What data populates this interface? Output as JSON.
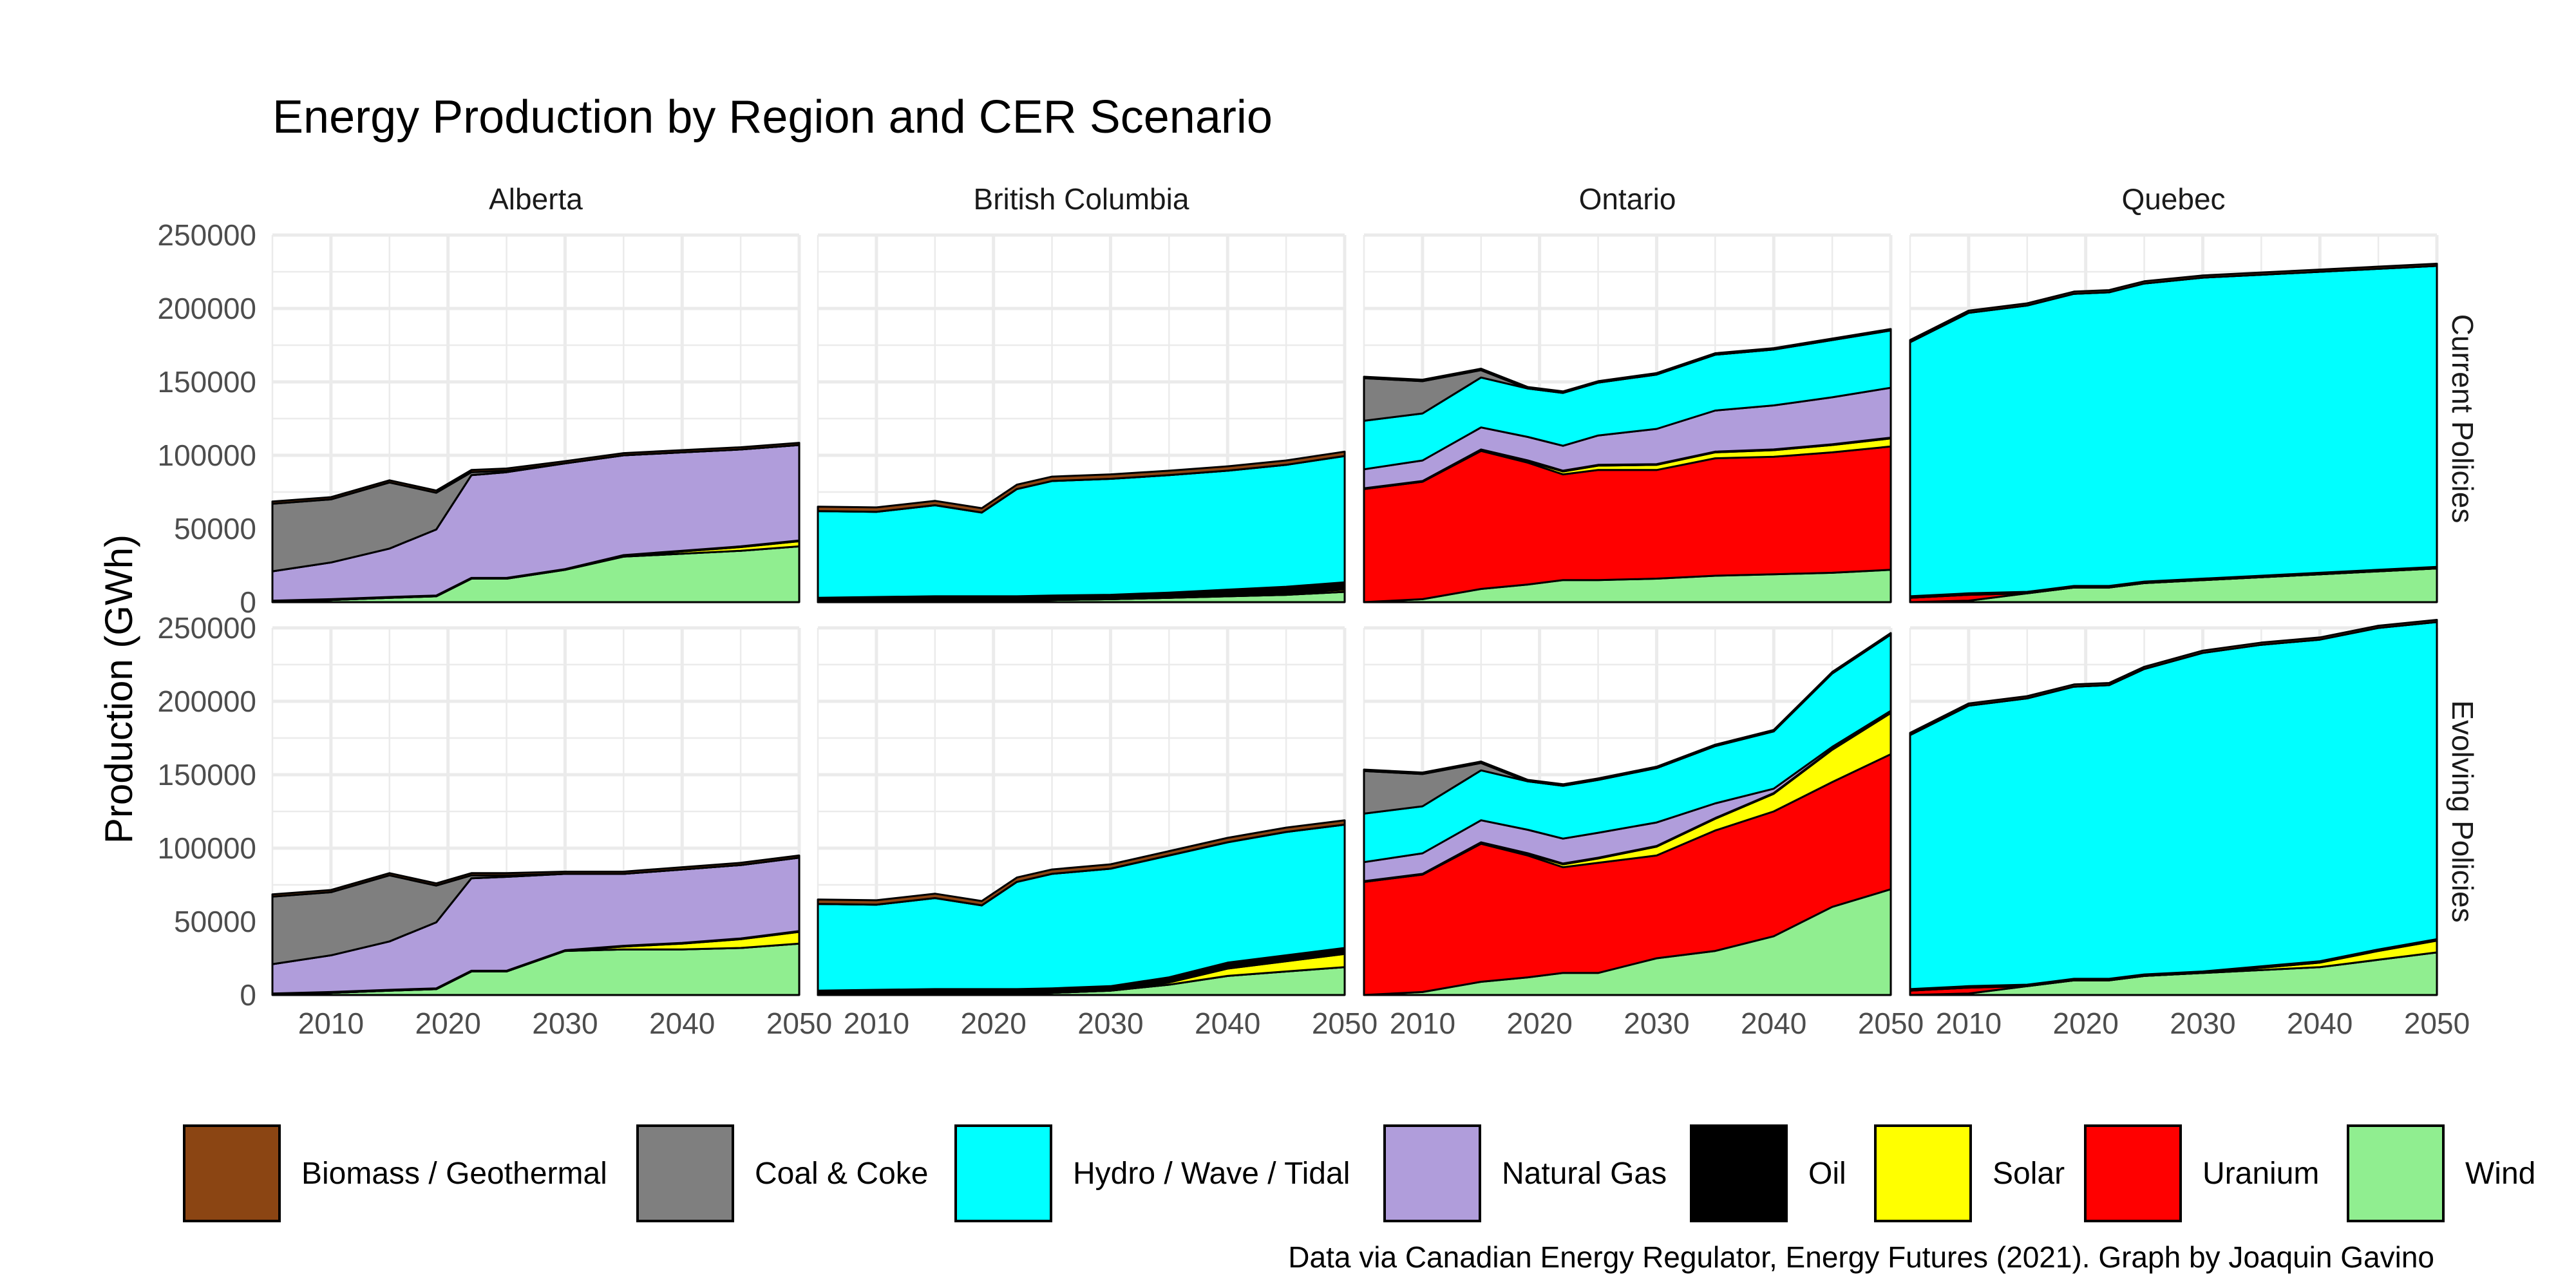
{
  "chart_data": {
    "type": "area",
    "stacked": true,
    "title": "Energy Production by Region and CER Scenario",
    "ylabel": "Production (GWh)",
    "xlabel": "",
    "caption": "Data via Canadian Energy Regulator, Energy Futures (2021). Graph by Joaquin Gavino",
    "xlim": [
      2005,
      2050
    ],
    "ylim": [
      0,
      250000
    ],
    "x_ticks": [
      "2010",
      "2020",
      "2030",
      "2040",
      "2050"
    ],
    "y_ticks": [
      "0",
      "50000",
      "100000",
      "150000",
      "200000",
      "250000"
    ],
    "grid": true,
    "legend_position": "bottom",
    "legend": [
      {
        "name": "Biomass / Geothermal",
        "color": "#8B4513"
      },
      {
        "name": "Coal & Coke",
        "color": "#7F7F7F"
      },
      {
        "name": "Hydro / Wave / Tidal",
        "color": "#00FFFF"
      },
      {
        "name": "Natural Gas",
        "color": "#B09DDB"
      },
      {
        "name": "Oil",
        "color": "#000000"
      },
      {
        "name": "Solar",
        "color": "#FFFF00"
      },
      {
        "name": "Uranium",
        "color": "#FF0000"
      },
      {
        "name": "Wind",
        "color": "#90EE90"
      }
    ],
    "stack_order": [
      "Wind",
      "Uranium",
      "Solar",
      "Oil",
      "Natural Gas",
      "Hydro / Wave / Tidal",
      "Coal & Coke",
      "Biomass / Geothermal"
    ],
    "columns": [
      "Alberta",
      "British Columbia",
      "Ontario",
      "Quebec"
    ],
    "rows": [
      "Current Policies",
      "Evolving Policies"
    ],
    "years": [
      2005,
      2010,
      2015,
      2019,
      2022,
      2025,
      2030,
      2035,
      2040,
      2045,
      2050
    ],
    "panels": [
      {
        "region": "Alberta",
        "scenario": "Current Policies",
        "series": {
          "Wind": [
            500,
            1500,
            3000,
            4000,
            16000,
            16000,
            22000,
            31000,
            33000,
            35000,
            38000
          ],
          "Uranium": [
            0,
            0,
            0,
            0,
            0,
            0,
            0,
            0,
            0,
            0,
            0
          ],
          "Solar": [
            0,
            0,
            0,
            0,
            0,
            0,
            0,
            500,
            1500,
            2500,
            3500
          ],
          "Oil": [
            500,
            500,
            500,
            500,
            500,
            500,
            500,
            500,
            500,
            500,
            500
          ],
          "Natural Gas": [
            20000,
            25000,
            33000,
            45000,
            70000,
            72000,
            72000,
            68000,
            67000,
            66000,
            65000
          ],
          "Hydro / Wave / Tidal": [
            0,
            0,
            0,
            0,
            0,
            0,
            0,
            0,
            0,
            0,
            0
          ],
          "Coal & Coke": [
            46000,
            43000,
            45000,
            25000,
            2000,
            1000,
            0,
            0,
            0,
            0,
            0
          ],
          "Biomass / Geothermal": [
            1500,
            1500,
            1500,
            1500,
            1500,
            1500,
            1500,
            1500,
            1500,
            1500,
            1500
          ]
        }
      },
      {
        "region": "British Columbia",
        "scenario": "Current Policies",
        "series": {
          "Wind": [
            0,
            500,
            1000,
            1000,
            1000,
            1500,
            2000,
            3000,
            4000,
            5000,
            7000
          ],
          "Uranium": [
            0,
            0,
            0,
            0,
            0,
            0,
            0,
            0,
            0,
            0,
            0
          ],
          "Solar": [
            0,
            0,
            0,
            0,
            0,
            0,
            0,
            0,
            500,
            1000,
            1500
          ],
          "Oil": [
            2000,
            2000,
            2000,
            2000,
            2000,
            2000,
            2000,
            2500,
            3000,
            3500,
            4000
          ],
          "Natural Gas": [
            1000,
            1000,
            1000,
            1000,
            1000,
            1000,
            1000,
            1000,
            1000,
            1000,
            1000
          ],
          "Hydro / Wave / Tidal": [
            59000,
            58000,
            62000,
            57000,
            73000,
            78000,
            79000,
            80000,
            81000,
            83000,
            86000
          ],
          "Coal & Coke": [
            0,
            0,
            0,
            0,
            0,
            0,
            0,
            0,
            0,
            0,
            0
          ],
          "Biomass / Geothermal": [
            3000,
            3000,
            3000,
            3000,
            3000,
            3000,
            3000,
            3000,
            3000,
            3000,
            3000
          ]
        }
      },
      {
        "region": "Ontario",
        "scenario": "Current Policies",
        "series": {
          "Wind": [
            0,
            2000,
            9000,
            12000,
            15000,
            15000,
            16000,
            18000,
            19000,
            20000,
            22000
          ],
          "Uranium": [
            77000,
            80000,
            94000,
            83000,
            72000,
            75000,
            74000,
            80000,
            80000,
            82000,
            84000
          ],
          "Solar": [
            0,
            0,
            500,
            1000,
            2000,
            3000,
            3500,
            4000,
            4500,
            5000,
            5500
          ],
          "Oil": [
            500,
            500,
            500,
            500,
            500,
            500,
            500,
            500,
            500,
            500,
            500
          ],
          "Natural Gas": [
            13000,
            14000,
            15000,
            16000,
            17000,
            20000,
            24000,
            28000,
            30000,
            32000,
            34000
          ],
          "Hydro / Wave / Tidal": [
            33000,
            32000,
            34000,
            33000,
            36000,
            36000,
            37000,
            38000,
            38000,
            39000,
            39000
          ],
          "Coal & Coke": [
            29000,
            22000,
            5000,
            0,
            0,
            0,
            0,
            0,
            0,
            0,
            0
          ],
          "Biomass / Geothermal": [
            1000,
            1000,
            1000,
            1000,
            1000,
            1000,
            1000,
            1000,
            1000,
            1000,
            1000
          ]
        }
      },
      {
        "region": "Quebec",
        "scenario": "Current Policies",
        "series": {
          "Wind": [
            0,
            1000,
            6000,
            10000,
            10000,
            13000,
            15000,
            17000,
            19000,
            21000,
            23000
          ],
          "Uranium": [
            3000,
            4000,
            0,
            0,
            0,
            0,
            0,
            0,
            0,
            0,
            0
          ],
          "Solar": [
            0,
            0,
            0,
            0,
            0,
            0,
            0,
            0,
            0,
            0,
            0
          ],
          "Oil": [
            1000,
            1000,
            1000,
            1000,
            1000,
            1000,
            1000,
            1000,
            1000,
            1000,
            1000
          ],
          "Natural Gas": [
            0,
            0,
            0,
            0,
            0,
            0,
            0,
            0,
            0,
            0,
            0
          ],
          "Hydro / Wave / Tidal": [
            173000,
            191000,
            195000,
            199000,
            200000,
            203000,
            205000,
            205000,
            205000,
            205000,
            205000
          ],
          "Coal & Coke": [
            0,
            0,
            0,
            0,
            0,
            0,
            0,
            0,
            0,
            0,
            0
          ],
          "Biomass / Geothermal": [
            1500,
            1500,
            1500,
            1500,
            1500,
            1500,
            1500,
            1500,
            1500,
            1500,
            1500
          ]
        }
      },
      {
        "region": "Alberta",
        "scenario": "Evolving Policies",
        "series": {
          "Wind": [
            500,
            1500,
            3000,
            4000,
            16000,
            16000,
            30000,
            31000,
            31000,
            32000,
            35000
          ],
          "Uranium": [
            0,
            0,
            0,
            0,
            0,
            0,
            0,
            0,
            0,
            0,
            0
          ],
          "Solar": [
            0,
            0,
            0,
            0,
            0,
            0,
            0,
            2000,
            4000,
            6000,
            8000
          ],
          "Oil": [
            500,
            500,
            500,
            500,
            500,
            500,
            500,
            500,
            500,
            500,
            500
          ],
          "Natural Gas": [
            20000,
            25000,
            33000,
            45000,
            63000,
            64000,
            52000,
            49000,
            50000,
            50000,
            50000
          ],
          "Hydro / Wave / Tidal": [
            0,
            0,
            0,
            0,
            0,
            0,
            0,
            0,
            0,
            0,
            0
          ],
          "Coal & Coke": [
            46000,
            43000,
            45000,
            25000,
            2000,
            1000,
            0,
            0,
            0,
            0,
            0
          ],
          "Biomass / Geothermal": [
            1500,
            1500,
            1500,
            1500,
            1500,
            1500,
            1500,
            1500,
            1500,
            1500,
            1500
          ]
        }
      },
      {
        "region": "British Columbia",
        "scenario": "Evolving Policies",
        "series": {
          "Wind": [
            0,
            500,
            1000,
            1000,
            1000,
            1500,
            3000,
            7000,
            13000,
            16000,
            19000
          ],
          "Uranium": [
            0,
            0,
            0,
            0,
            0,
            0,
            0,
            0,
            0,
            0,
            0
          ],
          "Solar": [
            0,
            0,
            0,
            0,
            0,
            0,
            0,
            1500,
            5000,
            7000,
            9000
          ],
          "Oil": [
            2000,
            2000,
            2000,
            2000,
            2000,
            2000,
            2000,
            2500,
            3000,
            3000,
            3000
          ],
          "Natural Gas": [
            1000,
            1000,
            1000,
            1000,
            1000,
            1000,
            1000,
            1000,
            1000,
            1000,
            1000
          ],
          "Hydro / Wave / Tidal": [
            59000,
            58000,
            62000,
            57000,
            73000,
            78000,
            80000,
            83000,
            82000,
            84000,
            84000
          ],
          "Coal & Coke": [
            0,
            0,
            0,
            0,
            0,
            0,
            0,
            0,
            0,
            0,
            0
          ],
          "Biomass / Geothermal": [
            3000,
            3000,
            3000,
            3000,
            3000,
            3000,
            3000,
            3000,
            3000,
            3000,
            3000
          ]
        }
      },
      {
        "region": "Ontario",
        "scenario": "Evolving Policies",
        "series": {
          "Wind": [
            0,
            2000,
            9000,
            12000,
            15000,
            15000,
            25000,
            30000,
            40000,
            60000,
            72000
          ],
          "Uranium": [
            77000,
            80000,
            94000,
            83000,
            72000,
            75000,
            70000,
            82000,
            85000,
            85000,
            92000
          ],
          "Solar": [
            0,
            0,
            500,
            1000,
            2000,
            3000,
            6000,
            8000,
            12000,
            22000,
            28000
          ],
          "Oil": [
            500,
            500,
            500,
            500,
            500,
            500,
            500,
            500,
            500,
            500,
            500
          ],
          "Natural Gas": [
            13000,
            14000,
            15000,
            16000,
            17000,
            17000,
            16000,
            10000,
            3000,
            1500,
            1000
          ],
          "Hydro / Wave / Tidal": [
            33000,
            32000,
            34000,
            33000,
            36000,
            36000,
            37000,
            39000,
            39000,
            50000,
            52000
          ],
          "Coal & Coke": [
            29000,
            22000,
            5000,
            0,
            0,
            0,
            0,
            0,
            0,
            0,
            0
          ],
          "Biomass / Geothermal": [
            1000,
            1000,
            1000,
            1000,
            1000,
            1000,
            1000,
            1000,
            1000,
            1000,
            1000
          ]
        }
      },
      {
        "region": "Quebec",
        "scenario": "Evolving Policies",
        "series": {
          "Wind": [
            0,
            1000,
            6000,
            10000,
            10000,
            13000,
            15000,
            17000,
            19000,
            24000,
            29000
          ],
          "Uranium": [
            3000,
            4000,
            0,
            0,
            0,
            0,
            0,
            0,
            0,
            0,
            0
          ],
          "Solar": [
            0,
            0,
            0,
            0,
            0,
            0,
            0,
            1500,
            3000,
            6000,
            8000
          ],
          "Oil": [
            1000,
            1000,
            1000,
            1000,
            1000,
            1000,
            1000,
            1000,
            1000,
            1000,
            1000
          ],
          "Natural Gas": [
            0,
            0,
            0,
            0,
            0,
            0,
            0,
            0,
            0,
            0,
            0
          ],
          "Hydro / Wave / Tidal": [
            173000,
            191000,
            195000,
            199000,
            200000,
            208000,
            217000,
            219000,
            219000,
            219000,
            216000
          ],
          "Coal & Coke": [
            0,
            0,
            0,
            0,
            0,
            0,
            0,
            0,
            0,
            0,
            0
          ],
          "Biomass / Geothermal": [
            1500,
            1500,
            1500,
            1500,
            1500,
            1500,
            1500,
            1500,
            1500,
            1500,
            1500
          ]
        }
      }
    ]
  }
}
